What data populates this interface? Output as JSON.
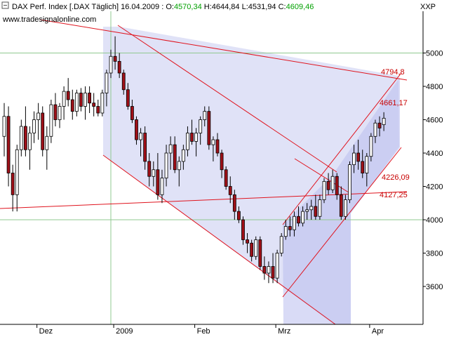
{
  "header": {
    "title": "DAX Perf. Index [.DAX  Täglich] 16.04.2009 : ",
    "open_label": "O:",
    "open_value": "4570,34",
    "high_label": " H:",
    "high_value": "4644,84",
    "low_label": " L:",
    "low_value": "4531,94",
    "close_label": " C:",
    "close_value": "4609,46",
    "source": "www.tradesignalonline.com",
    "axis_unit": "XXP"
  },
  "colors": {
    "up_candle": "#ffffff",
    "down_candle": "#a01018",
    "wick": "#000000",
    "channel_fill": "#cfd2f3",
    "trendline": "#e0141e",
    "grid": "#90c890",
    "open_value": "#00a000",
    "close_value": "#00a000",
    "annotation": "#c80000"
  },
  "chart_data": {
    "type": "candlestick",
    "title": "DAX Perf. Index [.DAX  Täglich]",
    "ylim": [
      3440,
      5250
    ],
    "y_ticks": [
      3600,
      3800,
      4000,
      4200,
      4400,
      4600,
      4800,
      5000
    ],
    "y_tick_labels": [
      "3600",
      "3800",
      "4000",
      "4200",
      "4400",
      "4600",
      "4800",
      "5000"
    ],
    "x_ticks": [
      {
        "label": "Dez",
        "index": 8
      },
      {
        "label": "2009",
        "index": 26
      },
      {
        "label": "Feb",
        "index": 45
      },
      {
        "label": "Mrz",
        "index": 64
      },
      {
        "label": "Apr",
        "index": 86
      }
    ],
    "grid": "partial",
    "start_date": "2008-11-17",
    "bars": [
      [
        4500,
        4700,
        4380,
        4620
      ],
      [
        4620,
        4680,
        4200,
        4280
      ],
      [
        4280,
        4330,
        4050,
        4150
      ],
      [
        4150,
        4450,
        4050,
        4420
      ],
      [
        4420,
        4600,
        4380,
        4560
      ],
      [
        4560,
        4680,
        4380,
        4420
      ],
      [
        4420,
        4560,
        4300,
        4520
      ],
      [
        4520,
        4650,
        4460,
        4600
      ],
      [
        4600,
        4700,
        4480,
        4640
      ],
      [
        4640,
        4680,
        4380,
        4420
      ],
      [
        4420,
        4560,
        4300,
        4500
      ],
      [
        4500,
        4720,
        4460,
        4690
      ],
      [
        4690,
        4760,
        4560,
        4600
      ],
      [
        4600,
        4700,
        4550,
        4680
      ],
      [
        4680,
        4800,
        4600,
        4770
      ],
      [
        4770,
        4850,
        4680,
        4720
      ],
      [
        4720,
        4780,
        4600,
        4650
      ],
      [
        4650,
        4780,
        4620,
        4760
      ],
      [
        4760,
        4790,
        4650,
        4680
      ],
      [
        4680,
        4800,
        4600,
        4760
      ],
      [
        4760,
        4800,
        4640,
        4700
      ],
      [
        4700,
        4760,
        4620,
        4680
      ],
      [
        4680,
        4720,
        4620,
        4640
      ],
      [
        4640,
        4780,
        4620,
        4760
      ],
      [
        4760,
        4900,
        4680,
        4880
      ],
      [
        4880,
        5020,
        4850,
        4980
      ],
      [
        4980,
        5100,
        4900,
        4950
      ],
      [
        4950,
        5000,
        4850,
        4880
      ],
      [
        4880,
        4900,
        4750,
        4780
      ],
      [
        4780,
        4820,
        4660,
        4680
      ],
      [
        4680,
        4720,
        4580,
        4600
      ],
      [
        4600,
        4620,
        4450,
        4480
      ],
      [
        4480,
        4550,
        4380,
        4520
      ],
      [
        4520,
        4560,
        4300,
        4350
      ],
      [
        4350,
        4400,
        4200,
        4260
      ],
      [
        4260,
        4350,
        4200,
        4300
      ],
      [
        4300,
        4400,
        4120,
        4150
      ],
      [
        4150,
        4300,
        4100,
        4250
      ],
      [
        4250,
        4450,
        4200,
        4400
      ],
      [
        4400,
        4500,
        4300,
        4450
      ],
      [
        4450,
        4500,
        4280,
        4300
      ],
      [
        4300,
        4380,
        4200,
        4350
      ],
      [
        4350,
        4450,
        4300,
        4420
      ],
      [
        4420,
        4560,
        4380,
        4520
      ],
      [
        4520,
        4600,
        4450,
        4470
      ],
      [
        4470,
        4550,
        4380,
        4520
      ],
      [
        4520,
        4620,
        4450,
        4600
      ],
      [
        4600,
        4680,
        4560,
        4650
      ],
      [
        4650,
        4680,
        4420,
        4450
      ],
      [
        4450,
        4500,
        4350,
        4480
      ],
      [
        4480,
        4520,
        4380,
        4400
      ],
      [
        4400,
        4420,
        4250,
        4300
      ],
      [
        4300,
        4320,
        4180,
        4200
      ],
      [
        4200,
        4260,
        4100,
        4150
      ],
      [
        4150,
        4180,
        4000,
        4050
      ],
      [
        4050,
        4080,
        3980,
        4000
      ],
      [
        4000,
        4020,
        3850,
        3880
      ],
      [
        3880,
        3920,
        3800,
        3860
      ],
      [
        3860,
        3880,
        3750,
        3780
      ],
      [
        3780,
        3900,
        3760,
        3880
      ],
      [
        3880,
        3900,
        3700,
        3720
      ],
      [
        3720,
        3780,
        3640,
        3680
      ],
      [
        3680,
        3750,
        3620,
        3720
      ],
      [
        3720,
        3800,
        3620,
        3650
      ],
      [
        3650,
        3820,
        3620,
        3800
      ],
      [
        3800,
        3920,
        3780,
        3900
      ],
      [
        3900,
        4000,
        3880,
        3960
      ],
      [
        3960,
        4020,
        3900,
        3940
      ],
      [
        3940,
        4050,
        3900,
        4020
      ],
      [
        4020,
        4080,
        3960,
        3980
      ],
      [
        3980,
        4080,
        3960,
        4050
      ],
      [
        4050,
        4100,
        4000,
        4060
      ],
      [
        4060,
        4120,
        4000,
        4080
      ],
      [
        4080,
        4150,
        4000,
        4020
      ],
      [
        4020,
        4150,
        4000,
        4120
      ],
      [
        4120,
        4250,
        4100,
        4230
      ],
      [
        4230,
        4280,
        4150,
        4180
      ],
      [
        4180,
        4300,
        4160,
        4260
      ],
      [
        4260,
        4280,
        4120,
        4150
      ],
      [
        4150,
        4200,
        4000,
        4020
      ],
      [
        4020,
        4150,
        4000,
        4120
      ],
      [
        4120,
        4350,
        4100,
        4330
      ],
      [
        4330,
        4450,
        4280,
        4400
      ],
      [
        4400,
        4480,
        4300,
        4350
      ],
      [
        4350,
        4420,
        4250,
        4280
      ],
      [
        4280,
        4400,
        4200,
        4380
      ],
      [
        4380,
        4520,
        4350,
        4500
      ],
      [
        4500,
        4600,
        4460,
        4580
      ],
      [
        4580,
        4620,
        4500,
        4550
      ],
      [
        4570,
        4645,
        4532,
        4609
      ]
    ],
    "annotations": [
      {
        "label": "4794,8"
      },
      {
        "label": "4661,17"
      },
      {
        "label": "4226,09"
      },
      {
        "label": "4127,25"
      }
    ]
  }
}
